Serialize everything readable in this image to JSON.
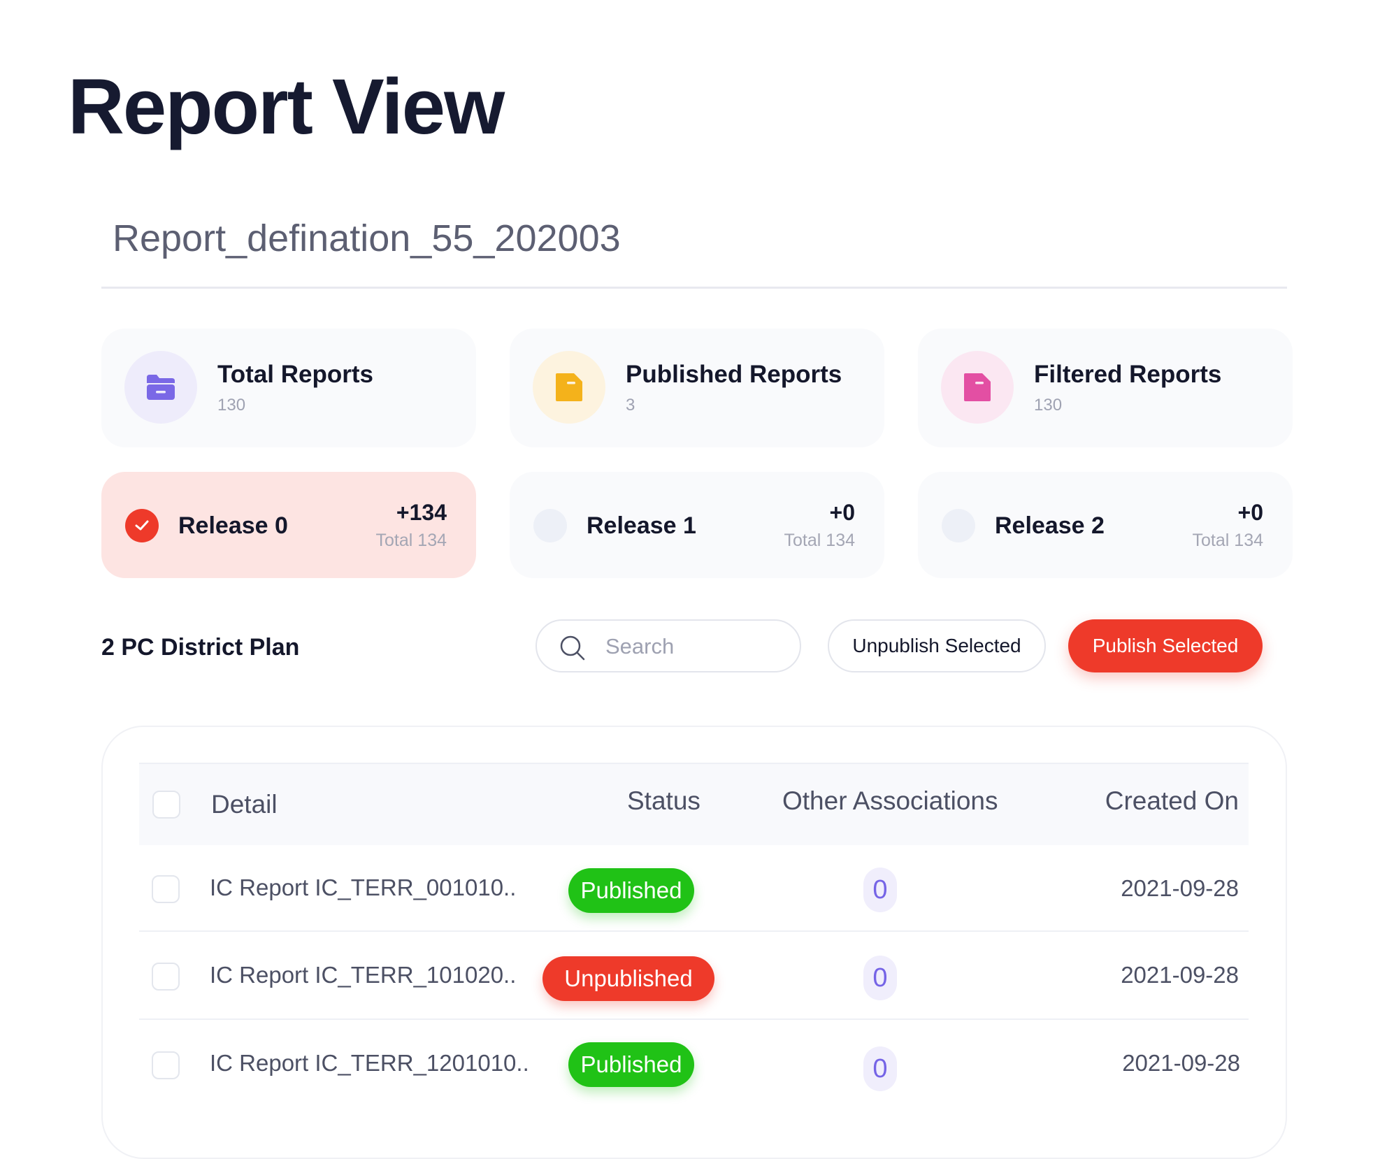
{
  "page": {
    "title": "Report View",
    "report_name": "Report_defination_55_202003"
  },
  "stats": [
    {
      "label": "Total Reports",
      "value": "130",
      "icon": "folder-icon",
      "color": "#7a68e6",
      "bg": "#eeecfb"
    },
    {
      "label": "Published Reports",
      "value": "3",
      "icon": "file-icon",
      "color": "#f4b21b",
      "bg": "#fdf3df"
    },
    {
      "label": "Filtered Reports",
      "value": "130",
      "icon": "file-icon",
      "color": "#e34fa3",
      "bg": "#fbe7f2"
    }
  ],
  "releases": [
    {
      "label": "Release 0",
      "delta": "+134",
      "total": "Total 134",
      "selected": true
    },
    {
      "label": "Release 1",
      "delta": "+0",
      "total": "Total 134",
      "selected": false
    },
    {
      "label": "Release 2",
      "delta": "+0",
      "total": "Total 134",
      "selected": false
    }
  ],
  "toolbar": {
    "section_title": "2 PC District Plan",
    "search_placeholder": "Search",
    "unpublish_label": "Unpublish Selected",
    "publish_label": "Publish Selected"
  },
  "table": {
    "columns": {
      "detail": "Detail",
      "status": "Status",
      "associations": "Other Associations",
      "created": "Created On"
    },
    "rows": [
      {
        "detail": "IC Report IC_TERR_001010..",
        "status": "Published",
        "associations": "0",
        "created": "2021-09-28"
      },
      {
        "detail": "IC Report IC_TERR_101020..",
        "status": "Unpublished",
        "associations": "0",
        "created": "2021-09-28"
      },
      {
        "detail": "IC Report IC_TERR_1201010..",
        "status": "Published",
        "associations": "0",
        "created": "2021-09-28"
      }
    ]
  },
  "colors": {
    "accent": "#ee3a2a",
    "published": "#20c216",
    "association": "#7564e6"
  }
}
